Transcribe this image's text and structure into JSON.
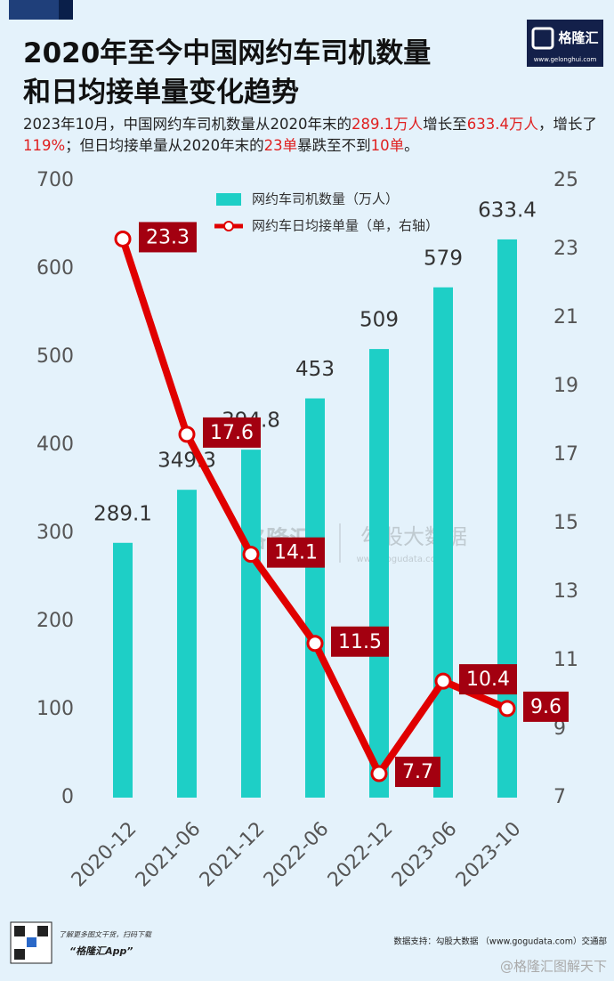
{
  "chart_data": {
    "type": "bar-line",
    "title": [
      "2020年至今中国网约车司机数量",
      "和日均接单量变化趋势"
    ],
    "subtitle": [
      "2023年10月，中国网约车司机数量从2020年末的",
      "289.1万人",
      "增长至",
      "633.4万人",
      "，增长了",
      "119%",
      "；但日均接单量从2020年末的",
      "23单",
      "暴跌至不到",
      "10单",
      "。"
    ],
    "categories": [
      "2020-12",
      "2021-06",
      "2021-12",
      "2022-06",
      "2022-12",
      "2023-06",
      "2023-10"
    ],
    "series": [
      {
        "name": "网约车司机数量（万人）",
        "type": "bar",
        "color": "#1ecfc6",
        "values": [
          289.1,
          349.3,
          394.8,
          453,
          509,
          579,
          633.4
        ]
      },
      {
        "name": "网约车日均接单量（单，右轴）",
        "type": "line",
        "axis": "y2",
        "color": "#e00000",
        "label_color": "#a30010",
        "values": [
          23.3,
          17.6,
          14.1,
          11.5,
          7.7,
          10.4,
          9.6
        ]
      }
    ],
    "ylim": [
      0,
      700
    ],
    "yticks": [
      0,
      100,
      200,
      300,
      400,
      500,
      600,
      700
    ],
    "y2lim": [
      7,
      25
    ],
    "y2ticks": [
      7,
      9,
      11,
      13,
      15,
      17,
      19,
      21,
      23,
      25
    ],
    "logo": {
      "name": "格隆汇",
      "url": "www.gelonghui.com"
    },
    "watermark": {
      "left": "格隆汇",
      "right": "勾股大数据",
      "url": "www.gogudata.com"
    },
    "footer": {
      "qr_text": "了解更多图文干货，扫码下载",
      "app": "“格隆汇App”",
      "source": "数据支持：勾股大数据 （www.gogudata.com）交通部",
      "credit": "@格隆汇图解天下"
    }
  }
}
